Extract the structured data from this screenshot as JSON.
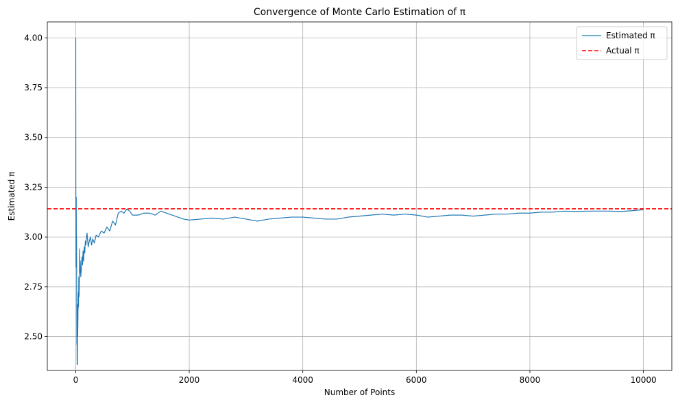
{
  "chart_data": {
    "type": "line",
    "title": "Convergence of Monte Carlo Estimation of π",
    "xlabel": "Number of Points",
    "ylabel": "Estimated π",
    "xlim": [
      -500,
      10500
    ],
    "ylim": [
      2.33,
      4.08
    ],
    "xticks": [
      0,
      2000,
      4000,
      6000,
      8000,
      10000
    ],
    "yticks": [
      2.5,
      2.75,
      3.0,
      3.25,
      3.5,
      3.75,
      4.0
    ],
    "grid": true,
    "legend_position": "top-right",
    "series": [
      {
        "name": "Estimated π",
        "color": "#1f77b4",
        "style": "solid",
        "x": [
          1,
          3,
          5,
          8,
          10,
          13,
          15,
          18,
          20,
          22,
          25,
          28,
          30,
          33,
          36,
          40,
          45,
          50,
          55,
          60,
          65,
          70,
          75,
          80,
          90,
          100,
          110,
          120,
          130,
          140,
          150,
          160,
          170,
          180,
          190,
          200,
          220,
          240,
          260,
          280,
          300,
          330,
          360,
          400,
          450,
          500,
          550,
          600,
          650,
          700,
          750,
          800,
          850,
          900,
          950,
          1000,
          1100,
          1200,
          1300,
          1400,
          1500,
          1600,
          1700,
          1800,
          1900,
          2000,
          2200,
          2400,
          2600,
          2800,
          3000,
          3200,
          3400,
          3600,
          3800,
          4000,
          4200,
          4400,
          4600,
          4800,
          5000,
          5200,
          5400,
          5600,
          5800,
          6000,
          6200,
          6400,
          6600,
          6800,
          7000,
          7200,
          7400,
          7600,
          7800,
          8000,
          8200,
          8400,
          8600,
          8800,
          9000,
          9200,
          9400,
          9600,
          9800,
          10000
        ],
        "y": [
          4.0,
          3.2,
          3.1,
          2.85,
          3.2,
          2.9,
          3.0,
          2.7,
          2.46,
          2.62,
          2.36,
          2.5,
          2.36,
          2.66,
          2.5,
          2.6,
          2.72,
          2.65,
          2.8,
          2.7,
          2.78,
          2.94,
          2.82,
          2.88,
          2.8,
          2.84,
          2.9,
          2.86,
          2.93,
          2.88,
          2.95,
          2.92,
          2.98,
          2.96,
          3.0,
          3.02,
          2.95,
          2.98,
          3.0,
          2.96,
          2.99,
          2.97,
          3.01,
          3.0,
          3.03,
          3.02,
          3.05,
          3.03,
          3.08,
          3.06,
          3.12,
          3.13,
          3.12,
          3.14,
          3.13,
          3.11,
          3.11,
          3.12,
          3.12,
          3.11,
          3.13,
          3.12,
          3.11,
          3.1,
          3.09,
          3.085,
          3.09,
          3.095,
          3.09,
          3.1,
          3.09,
          3.08,
          3.09,
          3.095,
          3.1,
          3.1,
          3.095,
          3.09,
          3.09,
          3.1,
          3.105,
          3.11,
          3.115,
          3.11,
          3.115,
          3.11,
          3.1,
          3.105,
          3.11,
          3.11,
          3.105,
          3.11,
          3.115,
          3.115,
          3.12,
          3.12,
          3.125,
          3.125,
          3.13,
          3.128,
          3.13,
          3.13,
          3.13,
          3.128,
          3.132,
          3.137
        ]
      },
      {
        "name": "Actual π",
        "color": "#ff0000",
        "style": "dashed",
        "value": 3.141592653589793
      }
    ]
  }
}
